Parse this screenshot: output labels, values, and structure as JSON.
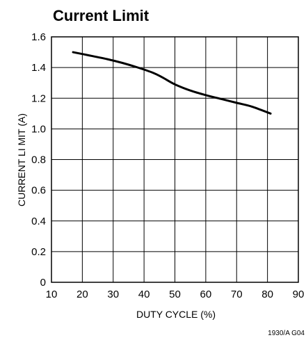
{
  "chart_data": {
    "type": "line",
    "title": "Current Limit",
    "xlabel": "DUTY CYCLE (%)",
    "ylabel": "CURRENT LI MIT (A)",
    "xlim": [
      10,
      90
    ],
    "ylim": [
      0,
      1.6
    ],
    "x_ticks": [
      "10",
      "20",
      "30",
      "40",
      "50",
      "60",
      "70",
      "80",
      "90"
    ],
    "y_ticks": [
      "0",
      "0.2",
      "0.4",
      "0.6",
      "0.8",
      "1.0",
      "1.2",
      "1.4",
      "1.6"
    ],
    "grid": true,
    "series": [
      {
        "x": [
          17,
          22,
          28,
          33,
          38,
          43,
          46,
          50,
          55,
          60,
          65,
          70,
          75,
          81
        ],
        "y": [
          1.5,
          1.48,
          1.455,
          1.43,
          1.4,
          1.365,
          1.335,
          1.29,
          1.25,
          1.22,
          1.195,
          1.17,
          1.145,
          1.1
        ]
      }
    ],
    "footnote": "1930/A G04"
  }
}
